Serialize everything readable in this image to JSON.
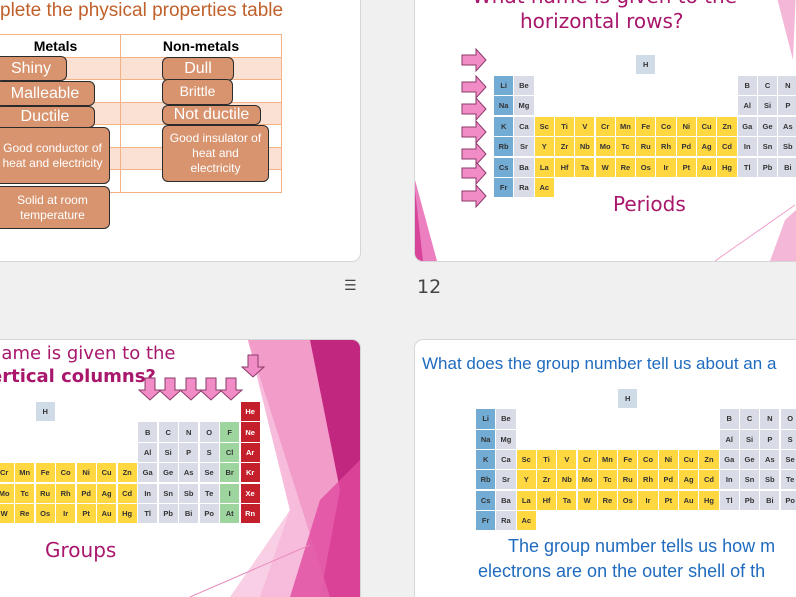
{
  "colors": {
    "alkali": "#72acd4",
    "gray": "#d9dbe6",
    "transition": "#ffd740",
    "hydrogen": "#cfdbe6",
    "halogen": "#9ed59f",
    "noble": "#c4202c",
    "title_magenta": "#a8176c",
    "title_blue": "#1f6bbf",
    "card": "#d8946f"
  },
  "slide1": {
    "title": "plete the physical properties table",
    "headers": [
      "Metals",
      "Non-metals"
    ],
    "metal_cards": [
      "Shiny",
      "Malleable",
      "Ductile",
      "Good conductor of heat and electricity",
      "Solid at room temperature"
    ],
    "nonmetal_cards": [
      "Dull",
      "Brittle",
      "Not ductile",
      "Good insulator of heat and electricity"
    ],
    "indicator_icon": "star-icon"
  },
  "slide2": {
    "title_line1": "What name is given to the",
    "title_line2": "horizontal rows?",
    "answer": "Periods",
    "slide_number": "12"
  },
  "slide3": {
    "title_line1": "name is given to the",
    "title_line2": "ertical columns?",
    "answer": "Groups"
  },
  "slide4": {
    "title": "What does the group number tell us about an a",
    "answer_line1": "The group number tells us how m",
    "answer_line2": "electrons are on the outer shell of th"
  },
  "periodic_table": [
    [
      "",
      "",
      "",
      "",
      "",
      "",
      "",
      "H",
      "",
      "",
      "",
      "",
      "",
      "",
      "",
      "",
      "",
      "He"
    ],
    [
      "Li",
      "Be",
      "",
      "",
      "",
      "",
      "",
      "",
      "",
      "",
      "",
      "",
      "B",
      "C",
      "N",
      "O",
      "F",
      "Ne"
    ],
    [
      "Na",
      "Mg",
      "",
      "",
      "",
      "",
      "",
      "",
      "",
      "",
      "",
      "",
      "Al",
      "Si",
      "P",
      "S",
      "Cl",
      "Ar"
    ],
    [
      "K",
      "Ca",
      "Sc",
      "Ti",
      "V",
      "Cr",
      "Mn",
      "Fe",
      "Co",
      "Ni",
      "Cu",
      "Zn",
      "Ga",
      "Ge",
      "As",
      "Se",
      "Br",
      "Kr"
    ],
    [
      "Rb",
      "Sr",
      "Y",
      "Zr",
      "Nb",
      "Mo",
      "Tc",
      "Ru",
      "Rh",
      "Pd",
      "Ag",
      "Cd",
      "In",
      "Sn",
      "Sb",
      "Te",
      "I",
      "Xe"
    ],
    [
      "Cs",
      "Ba",
      "La",
      "Hf",
      "Ta",
      "W",
      "Re",
      "Os",
      "Ir",
      "Pt",
      "Au",
      "Hg",
      "Tl",
      "Pb",
      "Bi",
      "Po",
      "At",
      "Rn"
    ],
    [
      "Fr",
      "Ra",
      "Ac",
      "",
      "",
      "",
      "",
      "",
      "",
      "",
      "",
      "",
      "",
      "",
      "",
      "",
      "",
      ""
    ]
  ]
}
